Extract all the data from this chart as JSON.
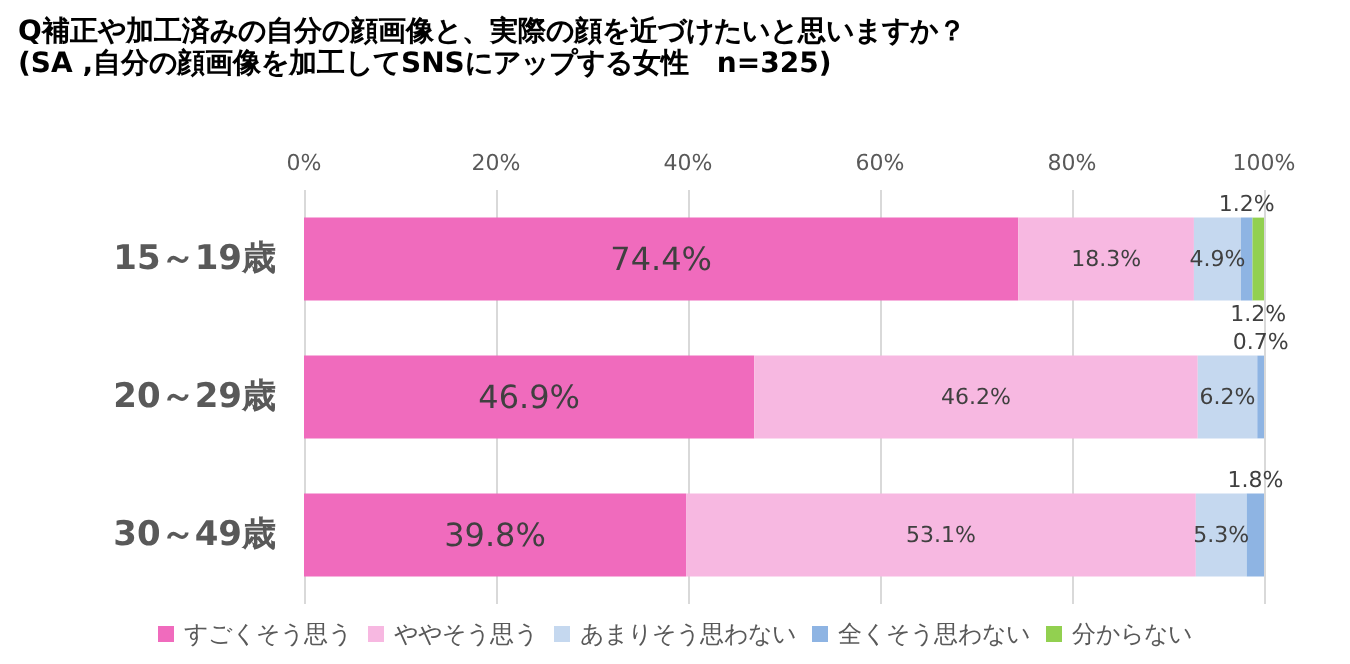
{
  "chart_data": {
    "type": "bar",
    "orientation": "horizontal",
    "stacked": true,
    "title": "Q補正や加工済みの自分の顔画像と、実際の顔を近づけたいと思いますか？",
    "subtitle": "(SA ,自分の顔画像を加工してSNSにアップする女性　n=325)",
    "categories": [
      "15～19歳",
      "20～29歳",
      "30～49歳"
    ],
    "series": [
      {
        "name": "すごくそう思う",
        "color": "#f06bbd",
        "values": [
          74.4,
          46.9,
          39.8
        ],
        "value_labels": [
          "74.4%",
          "46.9%",
          "39.8%"
        ]
      },
      {
        "name": "ややそう思う",
        "color": "#f7b8e1",
        "values": [
          18.3,
          46.2,
          53.1
        ],
        "value_labels": [
          "18.3%",
          "46.2%",
          "53.1%"
        ]
      },
      {
        "name": "あまりそう思わない",
        "color": "#c5d8ef",
        "values": [
          4.9,
          6.2,
          5.3
        ],
        "value_labels": [
          "4.9%",
          "6.2%",
          "5.3%"
        ]
      },
      {
        "name": "全くそう思わない",
        "color": "#8eb4e3",
        "values": [
          1.2,
          0.7,
          1.8
        ],
        "value_labels": [
          "1.2%",
          "0.7%",
          "1.8%"
        ]
      },
      {
        "name": "分からない",
        "color": "#92d050",
        "values": [
          1.2,
          null,
          null
        ],
        "value_labels": [
          "1.2%",
          null,
          null
        ]
      }
    ],
    "xlim": [
      0,
      100
    ],
    "xticks": [
      {
        "value": 0,
        "label": "0%"
      },
      {
        "value": 20,
        "label": "20%"
      },
      {
        "value": 40,
        "label": "40%"
      },
      {
        "value": 60,
        "label": "60%"
      },
      {
        "value": 80,
        "label": "80%"
      },
      {
        "value": 100,
        "label": "100%"
      }
    ],
    "grid": "x",
    "legend": "bottom"
  }
}
